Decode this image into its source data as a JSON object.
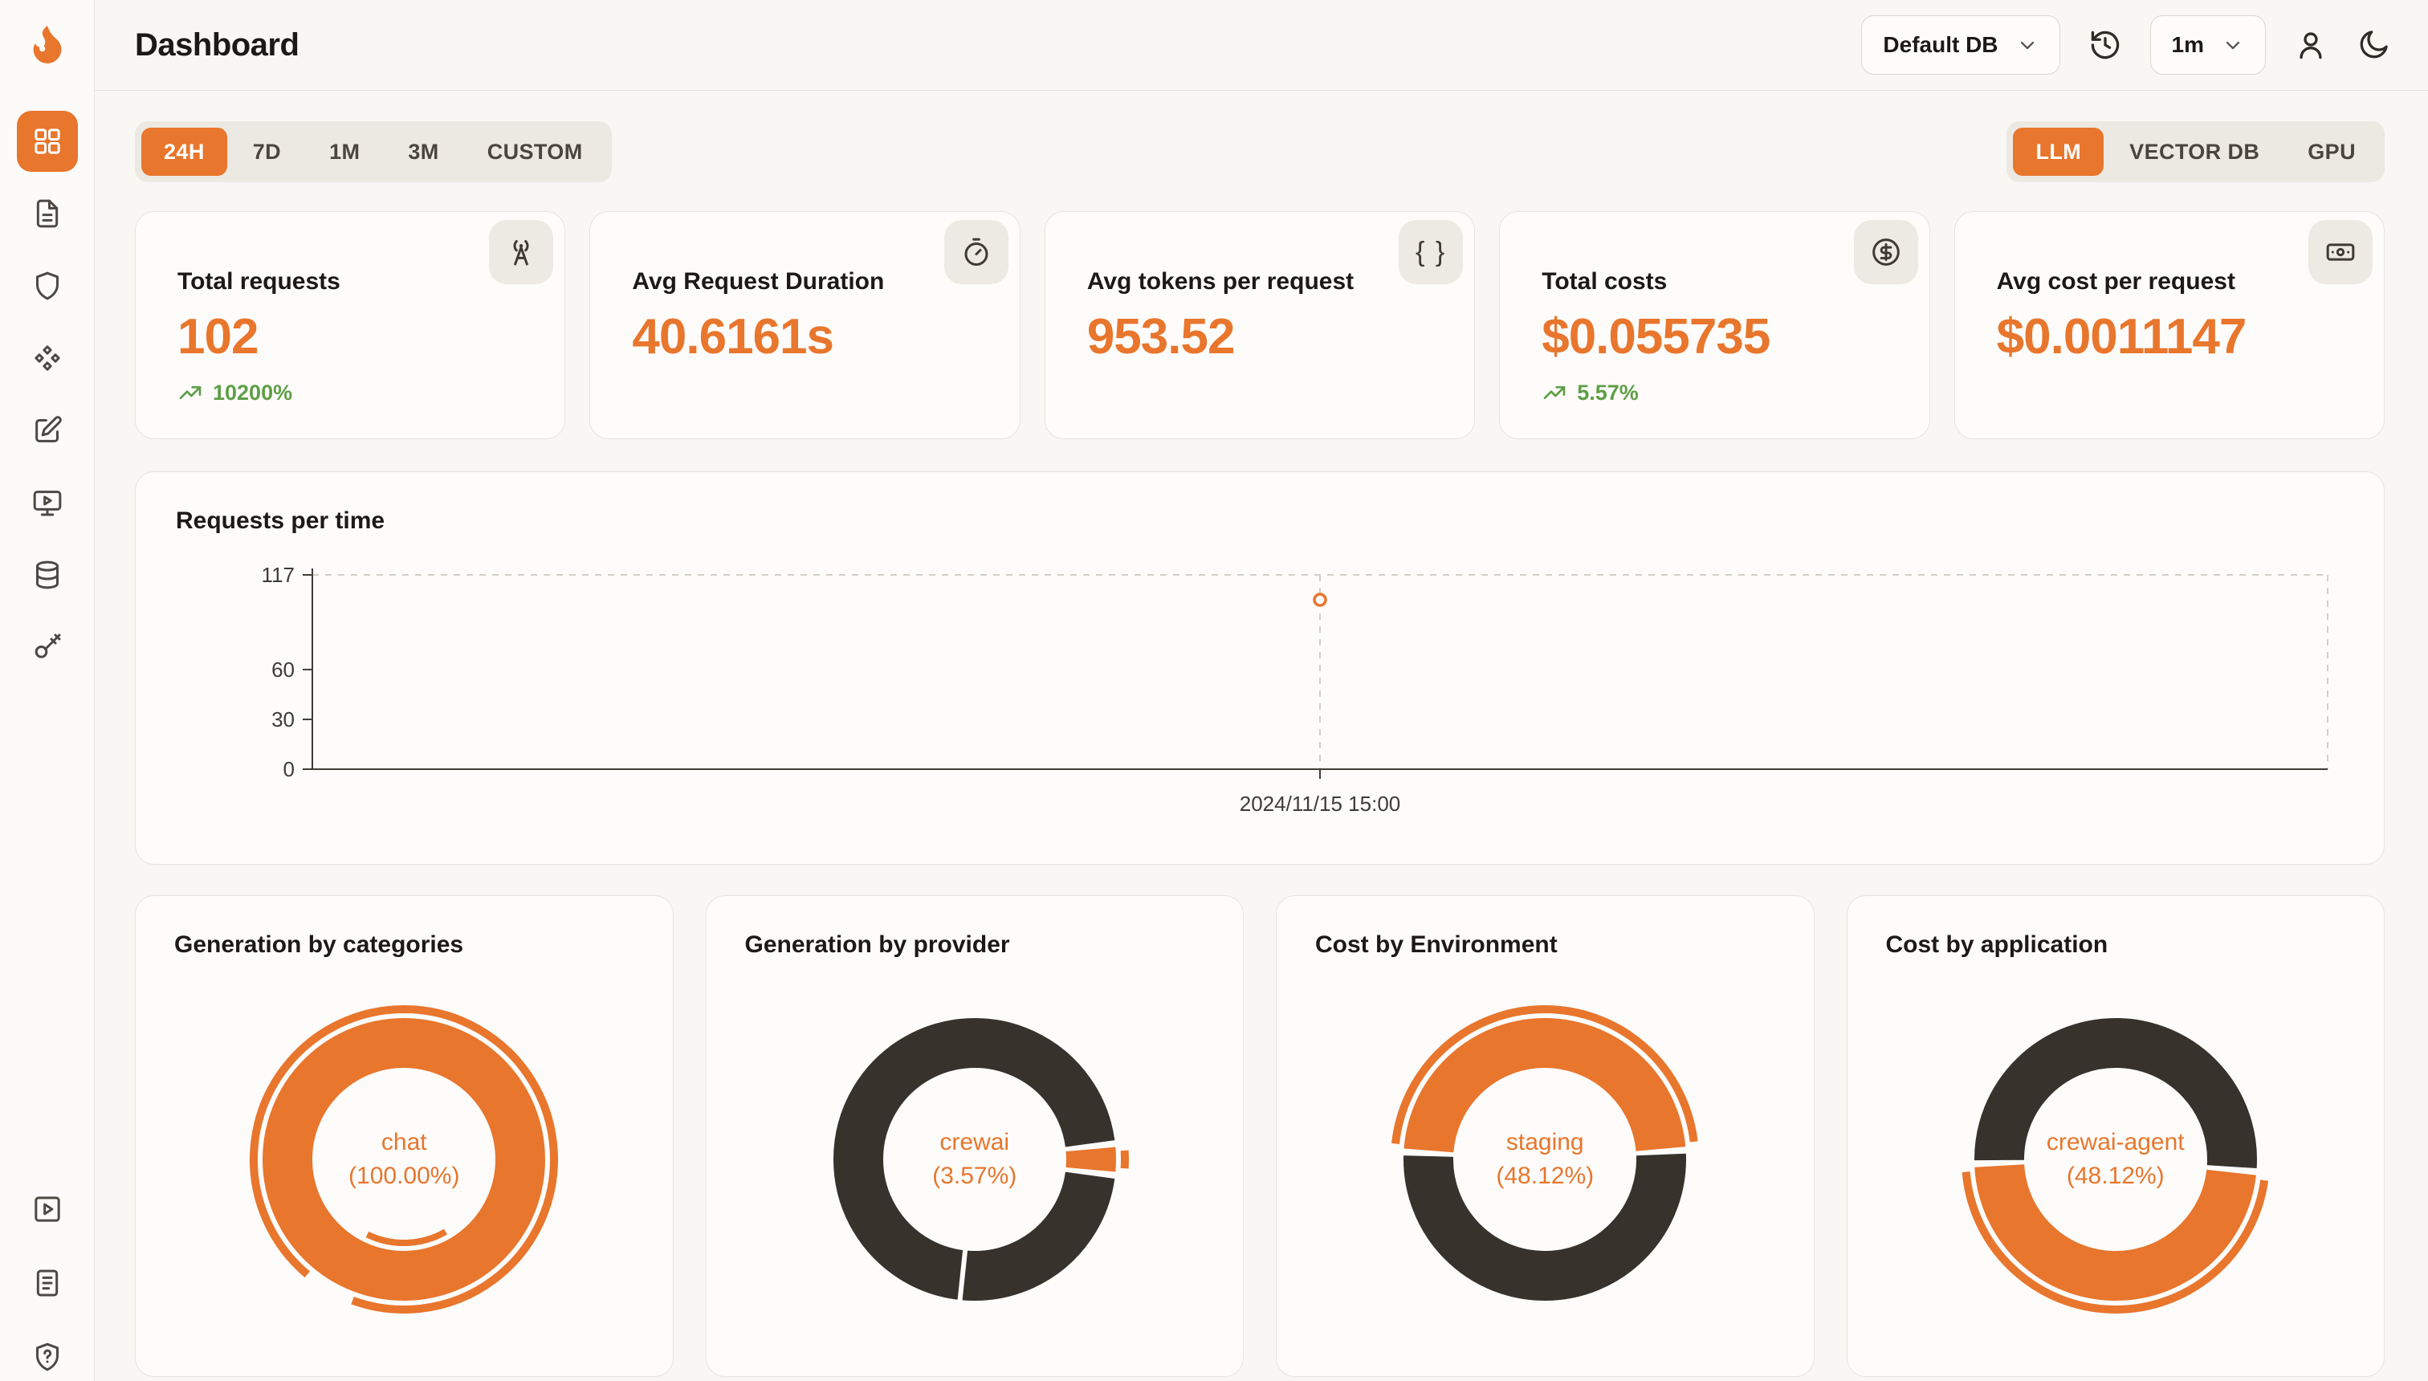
{
  "theme": {
    "background": "#F8F7F4",
    "accent": "#E8762D",
    "dark_slice": "#37322C",
    "positive": "#5F9E47"
  },
  "header": {
    "title": "Dashboard",
    "database_select": "Default DB",
    "refresh_select": "1m"
  },
  "sidebar": {
    "logo_icon": "flame-logo",
    "icons": [
      "layout-grid",
      "file-text",
      "shield",
      "component",
      "pen-square",
      "monitor-play",
      "database",
      "key"
    ],
    "active_index": 0,
    "footer_icons": [
      "play-square",
      "file-lines",
      "shield-question"
    ]
  },
  "filters": {
    "time_tabs": [
      "24H",
      "7D",
      "1M",
      "3M",
      "CUSTOM"
    ],
    "active_time_tab": "24H",
    "scope_tabs": [
      "LLM",
      "VECTOR DB",
      "GPU"
    ],
    "active_scope_tab": "LLM"
  },
  "stat_cards": [
    {
      "label": "Total requests",
      "value": "102",
      "delta": "10200%",
      "icon": "radio-tower-icon"
    },
    {
      "label": "Avg Request Duration",
      "value": "40.6161s",
      "delta": "",
      "icon": "timer-icon"
    },
    {
      "label": "Avg tokens per request",
      "value": "953.52",
      "delta": "",
      "icon": "braces-icon"
    },
    {
      "label": "Total costs",
      "value": "$0.055735",
      "delta": "5.57%",
      "icon": "circle-dollar-icon"
    },
    {
      "label": "Avg cost per request",
      "value": "$0.0011147",
      "delta": "",
      "icon": "banknote-icon"
    }
  ],
  "chart_data": [
    {
      "type": "line",
      "title": "Requests per time",
      "x": [
        "2024/11/15 15:00"
      ],
      "series": [
        {
          "name": "requests",
          "values": [
            102
          ]
        }
      ],
      "ylim": [
        0,
        117
      ],
      "yticks": [
        0,
        30,
        60,
        117
      ],
      "point_fraction_x": 0.5,
      "grid": "dashed-border",
      "legend": false
    },
    {
      "type": "pie",
      "title": "Generation by categories",
      "center_label": "chat",
      "center_value": "(100.00%)",
      "start_angle": 210,
      "inner_highlight": true,
      "slices": [
        {
          "label": "chat",
          "value": 100,
          "color": "accent",
          "active": true
        }
      ]
    },
    {
      "type": "pie",
      "title": "Generation by provider",
      "center_label": "crewai",
      "center_value": "(3.57%)",
      "start_angle": 83.6,
      "divider_at": 186,
      "slices": [
        {
          "label": "crewai",
          "value": 3.57,
          "color": "accent",
          "active": true
        },
        {
          "label": "other",
          "value": 96.43,
          "color": "dark",
          "active": false
        }
      ]
    },
    {
      "type": "pie",
      "title": "Cost by Environment",
      "center_label": "staging",
      "center_value": "(48.12%)",
      "start_angle": 273,
      "slices": [
        {
          "label": "staging",
          "value": 48.12,
          "color": "accent",
          "active": true
        },
        {
          "label": "other",
          "value": 51.88,
          "color": "dark",
          "active": false
        }
      ]
    },
    {
      "type": "pie",
      "title": "Cost by application",
      "center_label": "crewai-agent",
      "center_value": "(48.12%)",
      "start_angle": 95,
      "slices": [
        {
          "label": "crewai-agent",
          "value": 48.12,
          "color": "accent",
          "active": true
        },
        {
          "label": "other",
          "value": 51.88,
          "color": "dark",
          "active": false
        }
      ]
    }
  ]
}
